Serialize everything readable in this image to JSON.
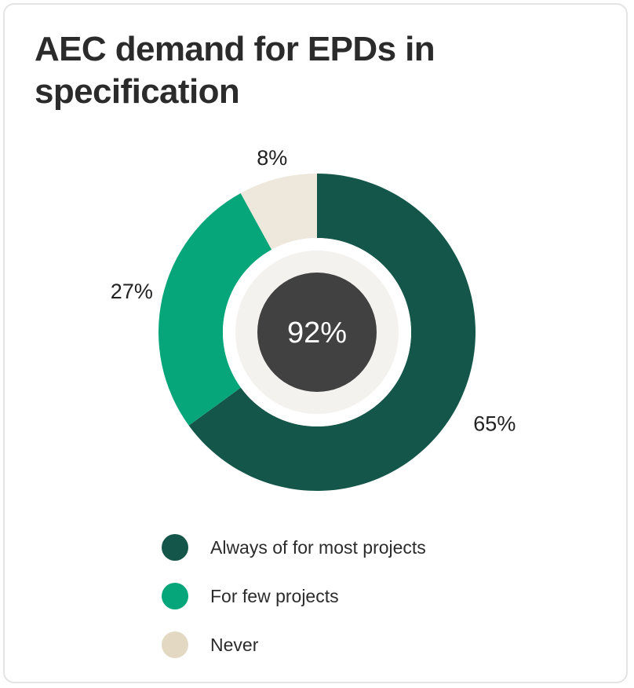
{
  "chart_data": {
    "type": "pie",
    "title": "AEC demand for EPDs in specification",
    "center_label": "92%",
    "series": [
      {
        "name": "Always of for most projects",
        "value": 65,
        "label": "65%",
        "color": "#14574a"
      },
      {
        "name": "For few projects",
        "value": 27,
        "label": "27%",
        "color": "#07a67a"
      },
      {
        "name": "Never",
        "value": 8,
        "label": "8%",
        "color": "#ede7dc"
      }
    ],
    "legend_position": "bottom",
    "colors": {
      "inner_ring": "#f4f2ee",
      "center": "#414141",
      "center_text": "#ffffff"
    }
  }
}
